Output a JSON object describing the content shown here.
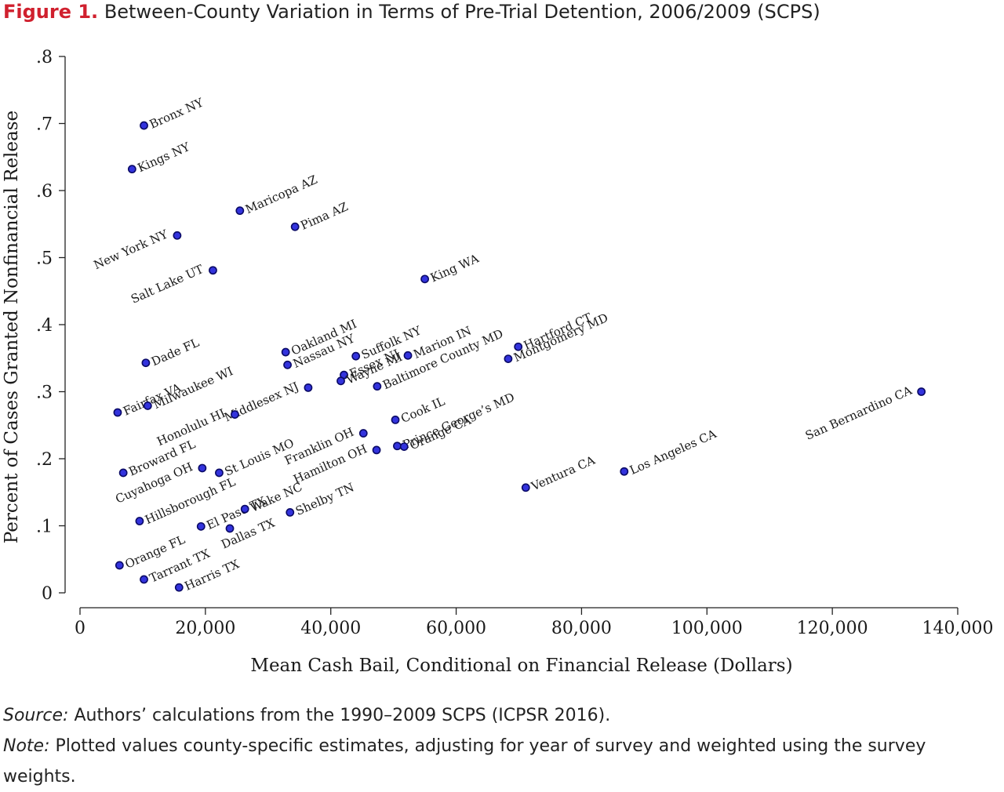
{
  "figure": {
    "label": "Figure 1.",
    "title": "Between-County Variation in Terms of Pre-Trial Detention, 2006/2009 (SCPS)"
  },
  "notes": {
    "source_label": "Source:",
    "source_text": "Authors’ calculations from the 1990–2009 SCPS (ICPSR 2016).",
    "note_label": "Note:",
    "note_text": "Plotted values county-specific estimates, adjusting for year of survey and weighted using the survey weights."
  },
  "chart_data": {
    "type": "scatter",
    "title": "Between-County Variation in Terms of Pre-Trial Detention, 2006/2009 (SCPS)",
    "xlabel": "Mean Cash Bail, Conditional on Financial Release (Dollars)",
    "ylabel": "Percent of Cases Granted Nonfinancial Release",
    "xlim": [
      0,
      140000
    ],
    "ylim": [
      0,
      0.8
    ],
    "x_ticks": [
      0,
      20000,
      40000,
      60000,
      80000,
      100000,
      120000,
      140000
    ],
    "x_tick_labels": [
      "0",
      "20,000",
      "40,000",
      "60,000",
      "80,000",
      "100,000",
      "120,000",
      "140,000"
    ],
    "y_ticks": [
      0,
      0.1,
      0.2,
      0.3,
      0.4,
      0.5,
      0.6,
      0.7,
      0.8
    ],
    "y_tick_labels": [
      "0",
      ".1",
      ".2",
      ".3",
      ".4",
      ".5",
      ".6",
      ".7",
      ".8"
    ],
    "grid": false,
    "marker_color": "#3333dd",
    "points": [
      {
        "label": "Bronx NY",
        "x": 10200,
        "y": 0.697,
        "side": "right"
      },
      {
        "label": "Kings NY",
        "x": 8300,
        "y": 0.632,
        "side": "right"
      },
      {
        "label": "Maricopa AZ",
        "x": 25500,
        "y": 0.57,
        "side": "right"
      },
      {
        "label": "Pima AZ",
        "x": 34300,
        "y": 0.546,
        "side": "right"
      },
      {
        "label": "New York NY",
        "x": 15500,
        "y": 0.533,
        "side": "left"
      },
      {
        "label": "Salt Lake UT",
        "x": 21200,
        "y": 0.481,
        "side": "left"
      },
      {
        "label": "King WA",
        "x": 55000,
        "y": 0.468,
        "side": "right"
      },
      {
        "label": "Dade FL",
        "x": 10500,
        "y": 0.343,
        "side": "right"
      },
      {
        "label": "Oakland MI",
        "x": 32800,
        "y": 0.359,
        "side": "right"
      },
      {
        "label": "Nassau NY",
        "x": 33100,
        "y": 0.34,
        "side": "right"
      },
      {
        "label": "Suffolk NY",
        "x": 44000,
        "y": 0.353,
        "side": "right"
      },
      {
        "label": "Essex NJ",
        "x": 42100,
        "y": 0.325,
        "side": "right"
      },
      {
        "label": "Wayne MI",
        "x": 41600,
        "y": 0.316,
        "side": "right"
      },
      {
        "label": "Marion IN",
        "x": 52300,
        "y": 0.354,
        "side": "right"
      },
      {
        "label": "Baltimore County MD",
        "x": 47400,
        "y": 0.308,
        "side": "right"
      },
      {
        "label": "Hartford CT",
        "x": 69900,
        "y": 0.367,
        "side": "right"
      },
      {
        "label": "Montgomery MD",
        "x": 68300,
        "y": 0.349,
        "side": "right"
      },
      {
        "label": "Fairfax VA",
        "x": 6000,
        "y": 0.269,
        "side": "right"
      },
      {
        "label": "Milwaukee WI",
        "x": 10800,
        "y": 0.279,
        "side": "right"
      },
      {
        "label": "Middlesex NJ",
        "x": 36400,
        "y": 0.306,
        "side": "left"
      },
      {
        "label": "Honolulu HI",
        "x": 24700,
        "y": 0.266,
        "side": "left"
      },
      {
        "label": "Cook IL",
        "x": 50300,
        "y": 0.258,
        "side": "right"
      },
      {
        "label": "San Bernardino CA",
        "x": 134200,
        "y": 0.3,
        "side": "left"
      },
      {
        "label": "Prince George’s MD",
        "x": 50600,
        "y": 0.219,
        "side": "right"
      },
      {
        "label": "Orange CA",
        "x": 51700,
        "y": 0.218,
        "side": "right"
      },
      {
        "label": "Franklin OH",
        "x": 45200,
        "y": 0.238,
        "side": "left"
      },
      {
        "label": "Hamilton OH",
        "x": 47300,
        "y": 0.213,
        "side": "left"
      },
      {
        "label": "Broward FL",
        "x": 6900,
        "y": 0.179,
        "side": "right"
      },
      {
        "label": "Cuyahoga OH",
        "x": 19500,
        "y": 0.186,
        "side": "left"
      },
      {
        "label": "St Louis MO",
        "x": 22200,
        "y": 0.179,
        "side": "right"
      },
      {
        "label": "Los Angeles CA",
        "x": 86800,
        "y": 0.181,
        "side": "right"
      },
      {
        "label": "Ventura CA",
        "x": 71100,
        "y": 0.157,
        "side": "right"
      },
      {
        "label": "Hillsborough FL",
        "x": 9500,
        "y": 0.107,
        "side": "right"
      },
      {
        "label": "El Paso TX",
        "x": 19300,
        "y": 0.099,
        "side": "right"
      },
      {
        "label": "Wake NC",
        "x": 26300,
        "y": 0.125,
        "side": "right"
      },
      {
        "label": "Dallas TX",
        "x": 23900,
        "y": 0.096,
        "side": "below"
      },
      {
        "label": "Shelby TN",
        "x": 33500,
        "y": 0.12,
        "side": "right"
      },
      {
        "label": "Orange FL",
        "x": 6300,
        "y": 0.041,
        "side": "right"
      },
      {
        "label": "Tarrant TX",
        "x": 10200,
        "y": 0.02,
        "side": "right"
      },
      {
        "label": "Harris TX",
        "x": 15800,
        "y": 0.008,
        "side": "right"
      }
    ]
  }
}
